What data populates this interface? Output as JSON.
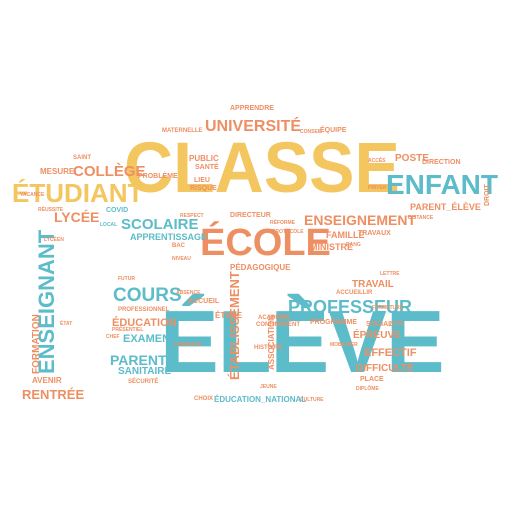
{
  "colors": {
    "yellow": "#f3c65f",
    "orange": "#ee8f63",
    "teal": "#5cbcc9",
    "background": "#ffffff"
  },
  "words": {
    "classe": "CLASSE",
    "eleve": "ÉLÈVE",
    "ecole": "ÉCOLE",
    "enfant": "ENFANT",
    "etudiant": "ÉTUDIANT",
    "professeur": "PROFESSEUR",
    "enseignant": "ENSEIGNANT",
    "universite": "UNIVERSITÉ",
    "cours": "COURS",
    "college": "COLLÈGE",
    "lycee": "LYCÉE",
    "scolaire": "SCOLAIRE",
    "enseignement": "ENSEIGNEMENT",
    "etablissement": "ÉTABLISSEMENT",
    "rentree": "RENTRÉE",
    "parent": "PARENT",
    "sanitaire": "SANITAIRE",
    "examen": "EXAMEN",
    "education": "ÉDUCATION",
    "education_national": "ÉDUCATION_NATIONAL",
    "effectif": "EFFECTIF",
    "difficulte": "DIFFICULTÉ",
    "epreuve": "ÉPREUVE",
    "travail": "TRAVAIL",
    "poste": "POSTE",
    "direction": "DIRECTION",
    "parent_eleve": "PARENT_ÉLÈVE",
    "mesure": "MESURE",
    "apprentissage": "APPRENTISSAGE",
    "famille": "FAMILLE",
    "ministre": "MINISTRE",
    "pedagogique": "PÉDAGOGIQUE",
    "formation": "FORMATION",
    "avenir": "AVENIR",
    "probleme": "PROBLÈME",
    "lieu": "LIEU",
    "sante": "SANTÉ",
    "public": "PUBLIC",
    "risque": "RISQUE",
    "directeur": "DIRECTEUR",
    "maternelle": "MATERNELLE",
    "equipe": "ÉQUIPE",
    "accueil": "ACCUEIL",
    "etude": "ÉTUDE",
    "association": "ASSOCIATION",
    "programme": "PROGRAMME",
    "social": "SOCIAL",
    "place": "PLACE",
    "travaux": "TRAVAUX",
    "apprendre": "APPRENDRE",
    "covid": "COVID",
    "saint": "SAINT",
    "academie": "ACADÉMIE",
    "histoire": "HISTOIRE",
    "securite": "SÉCURITÉ",
    "choix": "CHOIX",
    "professionnel": "PROFESSIONNEL",
    "vacance": "VACANCE",
    "reussite": "RÉUSSITE",
    "accueillir": "ACCUEILLIR",
    "lettre": "LETTRE",
    "fermeture": "FERMETURE",
    "futur": "FUTUR",
    "absence": "ABSENCE",
    "droit": "DROIT",
    "priver": "PRIVER",
    "acces": "ACCÈS",
    "chef": "CHEF",
    "local": "LOCAL",
    "etat": "ÉTAT",
    "ecole_small": "ÉCOLE",
    "mobiliser": "MOBILISER",
    "note": "NOTE",
    "etude_small": "ÉTUDE",
    "bac": "BAC",
    "niveau": "NIVEAU",
    "confinement": "CONFINEMENT",
    "contexte": "CONTEXTE",
    "poid": "POID",
    "eleve_small": "ÉLÈVE",
    "distance": "DISTANCE",
    "rendu": "RENDU",
    "conseil": "CONSEIL",
    "semaine": "SEMAINE",
    "ecole_ville": "VILLE",
    "present": "PRÉSENTIEL",
    "resultat": "RÉSULTAT",
    "periscolaire": "PÉRISCOLAIRE",
    "diplome": "DIPLÔME",
    "respect": "RESPECT",
    "reforme": "RÉFORME",
    "prof": "PROF",
    "cycle": "CYCLE",
    "universitaire": "UNIVERSITAIRE",
    "rectorat": "RECTORAT",
    "reouverture": "RÉOUVERTURE",
    "cantine": "CANTINE",
    "garderie": "GARDERIE",
    "enquete": "ENQUÊTE",
    "protocole": "PROTOCOLE",
    "secteur": "SECTEUR",
    "pays": "PAYS",
    "eleves_rang": "RANG",
    "inscription": "INSCRIPTION",
    "lycee_pro": "LYCÉEN",
    "jeune": "JEUNE",
    "culture": "CULTURE"
  }
}
